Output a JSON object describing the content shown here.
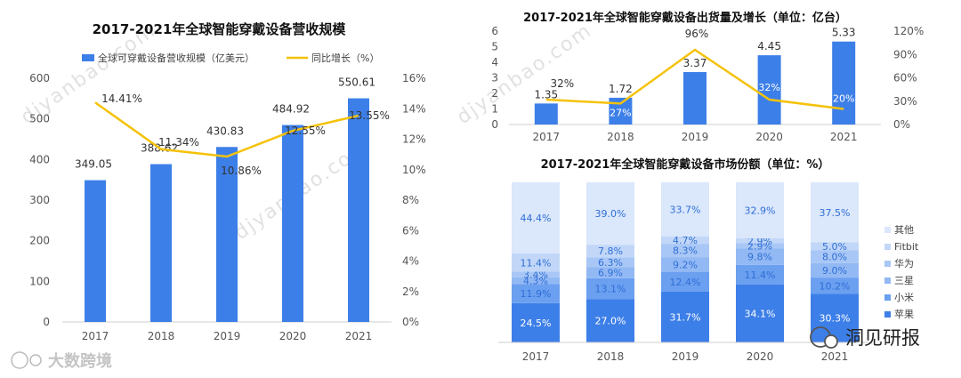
{
  "colors": {
    "bar": "#3d7fe8",
    "line": "#f5c20a",
    "share_segments": [
      "#3d7fe8",
      "#6b9ff0",
      "#93b9f4",
      "#a9c7f6",
      "#c2d7f8",
      "#dbe7fb"
    ]
  },
  "chart_data": [
    {
      "type": "bar",
      "title": "2017-2021年全球智能穿戴设备营收规模",
      "categories": [
        "2017",
        "2018",
        "2019",
        "2020",
        "2021"
      ],
      "series": [
        {
          "name": "全球可穿戴设备营收规模（亿美元）",
          "type": "bar",
          "values": [
            349.05,
            388.62,
            430.83,
            484.92,
            550.61
          ],
          "labels": [
            "349.05",
            "388.62",
            "430.83",
            "484.92",
            "550.61"
          ]
        },
        {
          "name": "同比增长（%）",
          "type": "line",
          "values": [
            14.41,
            11.34,
            10.86,
            12.55,
            13.55
          ],
          "labels": [
            "14.41%",
            "11.34%",
            "10.86%",
            "12.55%",
            "13.55%"
          ]
        }
      ],
      "ylim": [
        0,
        600
      ],
      "yticks": [
        "0",
        "100",
        "200",
        "300",
        "400",
        "500",
        "600"
      ],
      "y2lim": [
        0,
        16
      ],
      "y2ticks": [
        "0%",
        "2%",
        "4%",
        "6%",
        "8%",
        "10%",
        "12%",
        "14%",
        "16%"
      ],
      "legend": "top"
    },
    {
      "type": "bar",
      "title": "2017-2021年全球智能穿戴设备出货量及增长（单位：亿台）",
      "categories": [
        "2017",
        "2018",
        "2019",
        "2020",
        "2021"
      ],
      "series": [
        {
          "type": "bar",
          "values": [
            1.35,
            1.72,
            3.37,
            4.45,
            5.33
          ],
          "labels": [
            "1.35",
            "1.72",
            "3.37",
            "4.45",
            "5.33"
          ]
        },
        {
          "type": "line",
          "values": [
            32,
            27,
            96,
            32,
            20
          ],
          "labels": [
            "32%",
            "27%",
            "96%",
            "32%",
            "20%"
          ]
        }
      ],
      "ylim": [
        0,
        6
      ],
      "yticks": [
        "0",
        "1",
        "2",
        "3",
        "4",
        "5",
        "6"
      ],
      "y2lim": [
        0,
        120
      ],
      "y2ticks": [
        "0%",
        "30%",
        "60%",
        "90%",
        "120%"
      ]
    },
    {
      "type": "bar",
      "stacked": true,
      "title": "2017-2021年全球智能穿戴设备市场份额（单位：%）",
      "categories": [
        "2017",
        "2018",
        "2019",
        "2020",
        "2021"
      ],
      "series": [
        {
          "name": "苹果",
          "values": [
            24.5,
            27.0,
            31.7,
            34.1,
            30.3
          ],
          "labels": [
            "24.5%",
            "27.0%",
            "31.7%",
            "34.1%",
            "30.3%"
          ]
        },
        {
          "name": "小米",
          "values": [
            11.9,
            13.1,
            12.4,
            11.4,
            10.2
          ],
          "labels": [
            "11.9%",
            "13.1%",
            "12.4%",
            "11.4%",
            "10.2%"
          ]
        },
        {
          "name": "三星",
          "values": [
            4.3,
            6.9,
            9.2,
            9.8,
            9.0
          ],
          "labels": [
            "4.3%",
            "6.9%",
            "9.2%",
            "9.8%",
            "9.0%"
          ]
        },
        {
          "name": "华为",
          "values": [
            3.4,
            6.3,
            8.3,
            2.9,
            8.0
          ],
          "labels": [
            "3.4%",
            "6.3%",
            "8.3%",
            "2.9%",
            "8.0%"
          ]
        },
        {
          "name": "Fitbit",
          "values": [
            11.4,
            7.8,
            4.7,
            2.9,
            5.0
          ],
          "labels": [
            "11.4%",
            "7.8%",
            "4.7%",
            "2.9%",
            "5.0%"
          ]
        },
        {
          "name": "其他",
          "values": [
            44.4,
            39.0,
            33.7,
            32.9,
            37.5
          ],
          "labels": [
            "44.4%",
            "39.0%",
            "33.7%",
            "32.9%",
            "37.5%"
          ]
        }
      ],
      "ylim": [
        0,
        100
      ],
      "legend": "right"
    }
  ],
  "watermark": "djyanbao.com",
  "logos": {
    "left": "大数跨境",
    "right": "洞见研报"
  }
}
